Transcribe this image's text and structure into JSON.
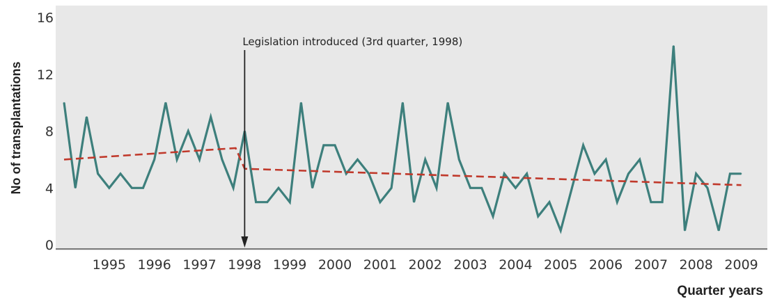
{
  "chart_data": {
    "type": "line",
    "title": "",
    "ylabel": "No of transplantations",
    "xlabel": "Quarter years",
    "ylim": [
      0,
      16
    ],
    "yticks": [
      0,
      4,
      8,
      12,
      16
    ],
    "xlim": [
      1994.5,
      2010
    ],
    "xtick_labels": [
      "1995",
      "1996",
      "1997",
      "1998",
      "1999",
      "2000",
      "2001",
      "2002",
      "2003",
      "2004",
      "2005",
      "2006",
      "2007",
      "2008",
      "2009"
    ],
    "grid": "none",
    "background_color": "#e8e8e8",
    "annotation": {
      "text": "Legislation introduced (3rd quarter, 1998)",
      "x": 1998.5
    },
    "series": [
      {
        "color": "#3d7f7c",
        "style": "solid",
        "x": [
          1994.5,
          1994.75,
          1995,
          1995.25,
          1995.5,
          1995.75,
          1996,
          1996.25,
          1996.5,
          1996.75,
          1997,
          1997.25,
          1997.5,
          1997.75,
          1998,
          1998.25,
          1998.5,
          1998.75,
          1999,
          1999.25,
          1999.5,
          1999.75,
          2000,
          2000.25,
          2000.5,
          2000.75,
          2001,
          2001.25,
          2001.5,
          2001.75,
          2002,
          2002.25,
          2002.5,
          2002.75,
          2003,
          2003.25,
          2003.5,
          2003.75,
          2004,
          2004.25,
          2004.5,
          2004.75,
          2005,
          2005.25,
          2005.5,
          2005.75,
          2006,
          2006.25,
          2006.5,
          2006.75,
          2007,
          2007.25,
          2007.5,
          2007.75,
          2008,
          2008.25,
          2008.5,
          2008.75,
          2009,
          2009.25,
          2009.5
        ],
        "values": [
          10,
          4,
          9,
          5,
          4,
          5,
          4,
          4,
          6,
          10,
          6,
          8,
          6,
          9,
          6,
          4,
          8,
          3,
          3,
          4,
          3,
          10,
          4,
          7,
          7,
          5,
          6,
          5,
          3,
          4,
          10,
          3,
          6,
          4,
          10,
          6,
          4,
          4,
          2,
          5,
          4,
          5,
          2,
          3,
          1,
          4,
          7,
          5,
          6,
          3,
          5,
          6,
          3,
          3,
          14,
          1,
          5,
          4,
          1,
          5,
          5
        ]
      },
      {
        "color": "#c0392b",
        "style": "dashed",
        "x": [
          1994.5,
          1998.3,
          1998.5,
          2009.5
        ],
        "values": [
          6.0,
          6.8,
          5.35,
          4.2
        ]
      }
    ]
  }
}
